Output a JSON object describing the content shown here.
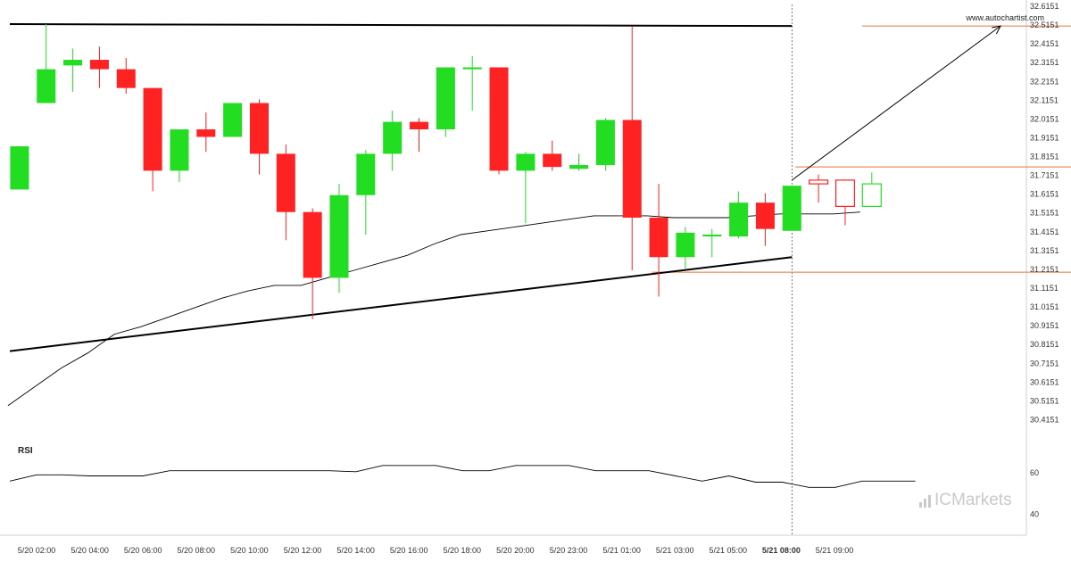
{
  "site": "www.autochartist.com",
  "brand": {
    "prefix": "IC",
    "suffix": "Markets",
    "color": "#c9c9c9"
  },
  "colors": {
    "up": "#22dd22",
    "down": "#ff2222",
    "line": "#000000",
    "level": "#e9743e",
    "marker": "#888888"
  },
  "rsi_panel": {
    "title": "RSI",
    "ticks": [
      60,
      40
    ]
  },
  "chart_data": {
    "type": "candlestick",
    "y_axis_labels": [
      "32.6151",
      "32.5151",
      "32.4151",
      "32.3151",
      "32.2151",
      "32.1151",
      "32.0151",
      "31.9151",
      "31.8151",
      "31.7151",
      "31.6151",
      "31.5151",
      "31.4151",
      "31.3151",
      "31.2151",
      "31.1151",
      "31.0151",
      "30.9151",
      "30.8151",
      "30.7151",
      "30.6151",
      "30.5151",
      "30.4151"
    ],
    "x_axis_labels": [
      "5/20 02:00",
      "5/20 04:00",
      "5/20 06:00",
      "5/20 08:00",
      "5/20 10:00",
      "5/20 12:00",
      "5/20 14:00",
      "5/20 16:00",
      "5/20 18:00",
      "5/20 20:00",
      "5/20 23:00",
      "5/21 01:00",
      "5/21 03:00",
      "5/21 05:00",
      "5/21 08:00",
      "5/21 09:00"
    ],
    "ylim": [
      30.3651,
      32.6151
    ],
    "candles": [
      {
        "o": 31.64,
        "h": 31.87,
        "l": 31.64,
        "c": 31.87
      },
      {
        "o": 32.1,
        "h": 32.52,
        "l": 32.1,
        "c": 32.28
      },
      {
        "o": 32.3,
        "h": 32.39,
        "l": 32.16,
        "c": 32.33
      },
      {
        "o": 32.33,
        "h": 32.4,
        "l": 32.18,
        "c": 32.28
      },
      {
        "o": 32.28,
        "h": 32.34,
        "l": 32.15,
        "c": 32.18
      },
      {
        "o": 32.18,
        "h": 32.18,
        "l": 31.63,
        "c": 31.74
      },
      {
        "o": 31.74,
        "h": 31.96,
        "l": 31.68,
        "c": 31.96
      },
      {
        "o": 31.96,
        "h": 32.05,
        "l": 31.84,
        "c": 31.92
      },
      {
        "o": 31.92,
        "h": 32.1,
        "l": 31.92,
        "c": 32.1
      },
      {
        "o": 32.1,
        "h": 32.12,
        "l": 31.72,
        "c": 31.83
      },
      {
        "o": 31.83,
        "h": 31.88,
        "l": 31.37,
        "c": 31.52
      },
      {
        "o": 31.52,
        "h": 31.54,
        "l": 30.95,
        "c": 31.17
      },
      {
        "o": 31.17,
        "h": 31.67,
        "l": 31.09,
        "c": 31.61
      },
      {
        "o": 31.61,
        "h": 31.85,
        "l": 31.4,
        "c": 31.83
      },
      {
        "o": 31.83,
        "h": 32.06,
        "l": 31.74,
        "c": 32.0
      },
      {
        "o": 32.0,
        "h": 32.02,
        "l": 31.84,
        "c": 31.96
      },
      {
        "o": 31.96,
        "h": 32.29,
        "l": 31.92,
        "c": 32.29
      },
      {
        "o": 32.28,
        "h": 32.35,
        "l": 32.06,
        "c": 32.29
      },
      {
        "o": 32.29,
        "h": 32.29,
        "l": 31.72,
        "c": 31.74
      },
      {
        "o": 31.74,
        "h": 31.84,
        "l": 31.46,
        "c": 31.83
      },
      {
        "o": 31.83,
        "h": 31.9,
        "l": 31.74,
        "c": 31.76
      },
      {
        "o": 31.75,
        "h": 31.83,
        "l": 31.74,
        "c": 31.77
      },
      {
        "o": 31.77,
        "h": 32.02,
        "l": 31.74,
        "c": 32.01
      },
      {
        "o": 32.01,
        "h": 32.51,
        "l": 31.21,
        "c": 31.49
      },
      {
        "o": 31.49,
        "h": 31.67,
        "l": 31.07,
        "c": 31.28
      },
      {
        "o": 31.28,
        "h": 31.44,
        "l": 31.22,
        "c": 31.41
      },
      {
        "o": 31.39,
        "h": 31.43,
        "l": 31.28,
        "c": 31.4
      },
      {
        "o": 31.39,
        "h": 31.63,
        "l": 31.38,
        "c": 31.57
      },
      {
        "o": 31.57,
        "h": 31.62,
        "l": 31.34,
        "c": 31.43
      },
      {
        "o": 31.42,
        "h": 31.66,
        "l": 31.42,
        "c": 31.66
      },
      {
        "o": 31.69,
        "h": 31.72,
        "l": 31.57,
        "c": 31.67
      },
      {
        "o": 31.69,
        "h": 31.69,
        "l": 31.45,
        "c": 31.55
      },
      {
        "o": 31.55,
        "h": 31.73,
        "l": 31.55,
        "c": 31.67
      }
    ],
    "projected_from_index": 30,
    "moving_average": [
      30.49,
      30.59,
      30.69,
      30.77,
      30.87,
      30.91,
      30.96,
      31.01,
      31.06,
      31.1,
      31.13,
      31.13,
      31.17,
      31.21,
      31.25,
      31.29,
      31.35,
      31.4,
      31.42,
      31.44,
      31.46,
      31.48,
      31.5,
      31.5,
      31.5,
      31.49,
      31.49,
      31.49,
      31.5,
      31.51,
      31.51,
      31.51,
      31.52
    ],
    "trendlines": [
      {
        "name": "resistance",
        "points": [
          [
            0,
            32.52
          ],
          [
            29,
            32.51
          ]
        ]
      },
      {
        "name": "support",
        "points": [
          [
            0,
            30.78
          ],
          [
            29,
            31.28
          ]
        ]
      }
    ],
    "levels": [
      {
        "y": 32.51,
        "from": 31.5,
        "to": 42.3
      },
      {
        "y": 31.76,
        "from": 29,
        "to": 42.3
      },
      {
        "y": 31.2,
        "from": 23.6,
        "to": 42.3
      }
    ],
    "arrow": {
      "from": [
        29,
        31.69
      ],
      "to": [
        36.7,
        32.51
      ]
    },
    "cursor_index": 29,
    "rsi": {
      "ylim": [
        30,
        75
      ],
      "values": [
        56,
        59,
        59,
        58.5,
        58.5,
        58.5,
        61,
        61,
        61,
        61,
        61,
        61,
        61,
        60.5,
        63.5,
        63.5,
        63.5,
        61,
        61,
        63.5,
        63.5,
        63.5,
        61,
        61,
        61,
        58.5,
        56,
        58.5,
        55.5,
        55.5,
        53,
        53,
        56,
        56,
        56
      ]
    }
  }
}
